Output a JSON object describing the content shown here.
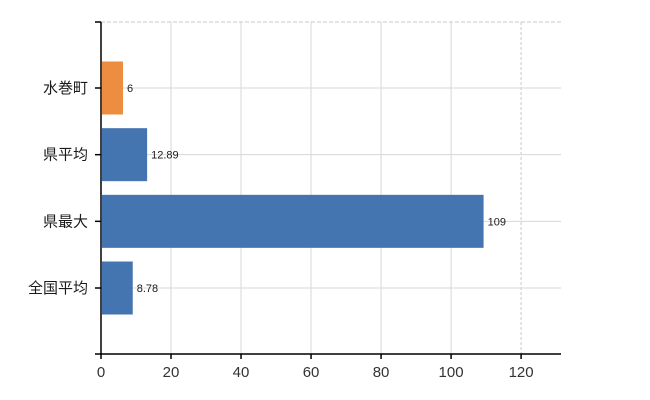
{
  "chart_data": {
    "type": "bar",
    "orientation": "horizontal",
    "title": "",
    "categories": [
      "水巻町",
      "県平均",
      "県最大",
      "全国平均"
    ],
    "values": [
      6,
      12.89,
      109,
      8.78
    ],
    "value_labels": [
      "6",
      "12.89",
      "109",
      "8.78"
    ],
    "bar_colors": [
      "#ec8d3f",
      "#4575b0",
      "#4575b0",
      "#4575b0"
    ],
    "xlim": [
      0,
      131.4
    ],
    "xticks": [
      0,
      20,
      40,
      60,
      80,
      100,
      120
    ],
    "xtick_labels": [
      "0",
      "20",
      "40",
      "60",
      "80",
      "100",
      "120"
    ],
    "grid": true,
    "legend": null,
    "colors": {
      "axis": "#000000",
      "grid_solid": "#d7d7d3",
      "grid_dashed": "#c9c9c5",
      "tick_text": "#333333",
      "category_text": "#1a1a1a",
      "value_text": "#1a1a1a",
      "background": "#ffffff"
    }
  }
}
